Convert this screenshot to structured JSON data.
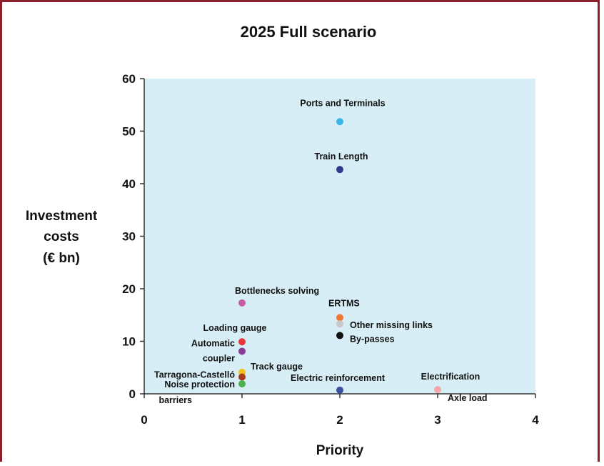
{
  "chart_data": {
    "type": "scatter",
    "title": "2025 Full scenario",
    "xlabel": "Priority",
    "ylabel_lines": [
      "Investment",
      "costs",
      "(€ bn)"
    ],
    "xlim": [
      0,
      4
    ],
    "ylim": [
      0,
      60
    ],
    "xticks": [
      0,
      1,
      2,
      3,
      4
    ],
    "yticks": [
      0,
      10,
      20,
      30,
      40,
      50,
      60
    ],
    "grid": false,
    "plot_background": "#d7eef7",
    "points": [
      {
        "label": "Ports and Terminals",
        "x": 2,
        "y": 51.8,
        "color": "#3ab6ea",
        "label_dx": 4,
        "label_dy": -22,
        "anchor": "middle"
      },
      {
        "label": "Train Length",
        "x": 2,
        "y": 42.7,
        "color": "#2e3c8c",
        "label_dx": 2,
        "label_dy": -14,
        "anchor": "middle"
      },
      {
        "label": "Bottlenecks solving",
        "x": 1,
        "y": 17.3,
        "color": "#c75ca3",
        "label_dx": -10,
        "label_dy": -13,
        "anchor": "start"
      },
      {
        "label": "ERTMS",
        "x": 2,
        "y": 14.5,
        "color": "#ee7733",
        "label_dx": -16,
        "label_dy": -16,
        "anchor": "start"
      },
      {
        "label": "Other missing links",
        "x": 2,
        "y": 13.3,
        "color": "#c8c8c8",
        "label_dx": 14,
        "label_dy": 6,
        "anchor": "start"
      },
      {
        "label": "By-passes",
        "x": 2,
        "y": 11.1,
        "color": "#111111",
        "label_dx": 14,
        "label_dy": 9,
        "anchor": "start"
      },
      {
        "label": "Loading gauge",
        "x": 1,
        "y": 9.9,
        "color": "#e8343a",
        "label_dx": -10,
        "label_dy": -15,
        "anchor": "middle"
      },
      {
        "label": "Automatic",
        "x": 1,
        "y": 8.1,
        "color": "#8a3a95",
        "label_dx": -10,
        "label_dy": -7,
        "anchor": "end"
      },
      {
        "label": "coupler",
        "x": 1,
        "y": 8.1,
        "color": "",
        "label_dx": -10,
        "label_dy": 14,
        "anchor": "end"
      },
      {
        "label": "Track gauge",
        "x": 1,
        "y": 4.1,
        "color": "#f0c21b",
        "label_dx": 12,
        "label_dy": -4,
        "anchor": "start"
      },
      {
        "label": "Tarragona-Castelló",
        "x": 1,
        "y": 3.2,
        "color": "#a83a20",
        "label_dx": -10,
        "label_dy": 1,
        "anchor": "end"
      },
      {
        "label": "Noise protection",
        "x": 1,
        "y": 1.9,
        "color": "#4caf50",
        "label_dx": -10,
        "label_dy": 5,
        "anchor": "end"
      },
      {
        "label": "barriers",
        "x": 1,
        "y": 1.9,
        "color": "",
        "label_dx": -70,
        "label_dy": 27,
        "anchor": "end"
      },
      {
        "label": "Electric reinforcement",
        "x": 2,
        "y": 0.7,
        "color": "#3a4fa0",
        "label_dx": -3,
        "label_dy": -13,
        "anchor": "middle"
      },
      {
        "label": "Electrification",
        "x": 3,
        "y": 0.8,
        "color": "#f4a7a7",
        "label_dx": 18,
        "label_dy": -14,
        "anchor": "middle"
      },
      {
        "label": "Axle load",
        "x": 3,
        "y": 0.8,
        "color": "",
        "label_dx": 14,
        "label_dy": 16,
        "anchor": "start"
      }
    ]
  }
}
